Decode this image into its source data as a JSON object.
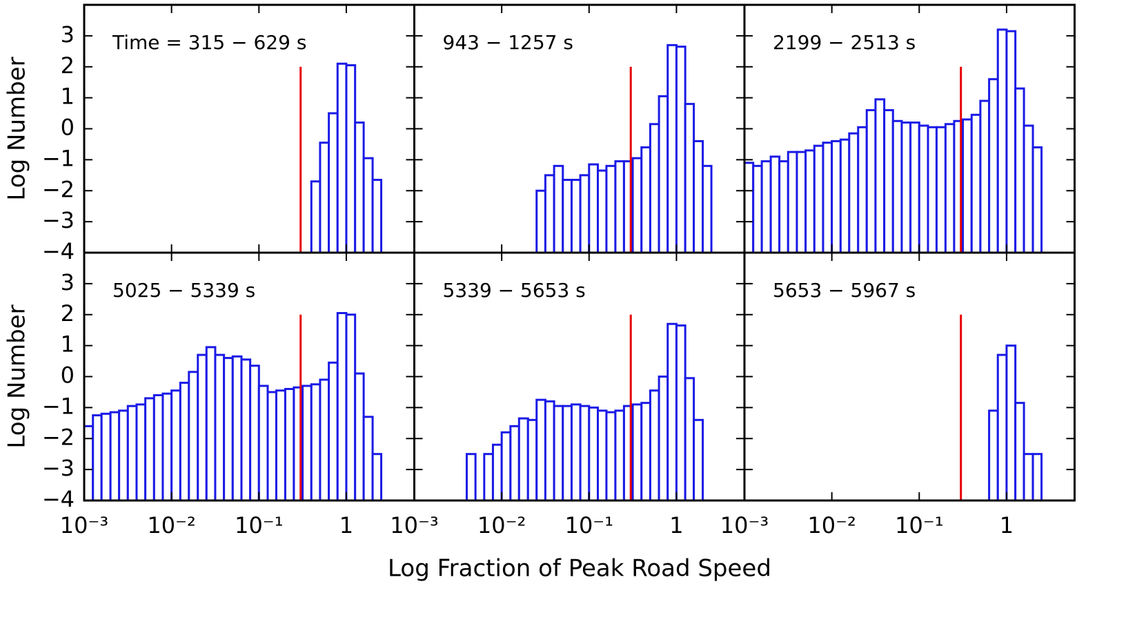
{
  "xlabel": "Log Fraction of Peak Road Speed",
  "chart_data": [
    {
      "type": "histogram",
      "title": "Time = 315 − 629 s",
      "ylabel": "Log Number",
      "log_x": true,
      "color": "#1a1ae6",
      "bins": [
        0.001,
        0.00126,
        0.00158,
        0.002,
        0.00251,
        0.00316,
        0.00398,
        0.00501,
        0.00631,
        0.00794,
        0.01,
        0.0126,
        0.0158,
        0.02,
        0.0251,
        0.0316,
        0.0398,
        0.0501,
        0.0631,
        0.0794,
        0.1,
        0.126,
        0.158,
        0.2,
        0.251,
        0.316,
        0.398,
        0.501,
        0.631,
        0.794,
        1,
        1.26,
        1.58,
        2,
        2.51,
        3.16,
        3.98,
        5.01
      ],
      "values": [
        null,
        null,
        null,
        null,
        null,
        null,
        null,
        null,
        null,
        null,
        null,
        null,
        null,
        null,
        null,
        null,
        null,
        null,
        null,
        null,
        null,
        null,
        null,
        null,
        null,
        null,
        -1.7,
        -0.45,
        0.5,
        2.1,
        2.05,
        0.2,
        -0.95,
        -1.65,
        null,
        null,
        null
      ],
      "vline": {
        "x": 0.3,
        "ymax": 2,
        "color": "#e60000"
      },
      "xlim": [
        0.001,
        6
      ],
      "ylim": [
        -4,
        4
      ],
      "xticks": [
        0.001,
        0.01,
        0.1,
        1
      ],
      "yticks": [
        {
          "value": -4,
          "label": "−4"
        },
        {
          "value": -3,
          "label": "−3"
        },
        {
          "value": -2,
          "label": "−2"
        },
        {
          "value": -1,
          "label": "−1"
        },
        0,
        1,
        2,
        3
      ]
    },
    {
      "type": "histogram",
      "title": "943 − 1257 s",
      "log_x": true,
      "color": "#1a1ae6",
      "bins": [
        0.001,
        0.00126,
        0.00158,
        0.002,
        0.00251,
        0.00316,
        0.00398,
        0.00501,
        0.00631,
        0.00794,
        0.01,
        0.0126,
        0.0158,
        0.02,
        0.0251,
        0.0316,
        0.0398,
        0.0501,
        0.0631,
        0.0794,
        0.1,
        0.126,
        0.158,
        0.2,
        0.251,
        0.316,
        0.398,
        0.501,
        0.631,
        0.794,
        1,
        1.26,
        1.58,
        2,
        2.51,
        3.16,
        3.98,
        5.01
      ],
      "values": [
        null,
        null,
        null,
        null,
        null,
        null,
        null,
        null,
        null,
        null,
        null,
        null,
        null,
        null,
        -2.0,
        -1.5,
        -1.2,
        -1.65,
        -1.65,
        -1.5,
        -1.15,
        -1.35,
        -1.2,
        -1.05,
        -1.05,
        -0.95,
        -0.6,
        0.15,
        1.05,
        2.7,
        2.65,
        0.8,
        -0.4,
        -1.2,
        null,
        null,
        null
      ],
      "vline": {
        "x": 0.3,
        "ymax": 2,
        "color": "#e60000"
      },
      "xlim": [
        0.001,
        6
      ],
      "ylim": [
        -4,
        4
      ],
      "xticks": [
        0.001,
        0.01,
        0.1,
        1
      ],
      "yticks": [
        -4,
        -3,
        -2,
        -1,
        0,
        1,
        2,
        3
      ]
    },
    {
      "type": "histogram",
      "title": "2199 − 2513 s",
      "log_x": true,
      "color": "#1a1ae6",
      "bins": [
        0.001,
        0.00126,
        0.00158,
        0.002,
        0.00251,
        0.00316,
        0.00398,
        0.00501,
        0.00631,
        0.00794,
        0.01,
        0.0126,
        0.0158,
        0.02,
        0.0251,
        0.0316,
        0.0398,
        0.0501,
        0.0631,
        0.0794,
        0.1,
        0.126,
        0.158,
        0.2,
        0.251,
        0.316,
        0.398,
        0.501,
        0.631,
        0.794,
        1,
        1.26,
        1.58,
        2,
        2.51,
        3.16,
        3.98,
        5.01
      ],
      "values": [
        -1.1,
        -1.2,
        -1.05,
        -0.9,
        -1.05,
        -0.75,
        -0.75,
        -0.7,
        -0.55,
        -0.45,
        -0.4,
        -0.35,
        -0.15,
        0.05,
        0.6,
        0.95,
        0.6,
        0.25,
        0.2,
        0.2,
        0.1,
        0.05,
        0.05,
        0.15,
        0.25,
        0.3,
        0.45,
        0.9,
        1.6,
        3.2,
        3.15,
        1.3,
        0.1,
        -0.6,
        null,
        null,
        null
      ],
      "vline": {
        "x": 0.3,
        "ymax": 2,
        "color": "#e60000"
      },
      "xlim": [
        0.001,
        6
      ],
      "ylim": [
        -4,
        4
      ],
      "xticks": [
        0.001,
        0.01,
        0.1,
        1
      ],
      "yticks": [
        -4,
        -3,
        -2,
        -1,
        0,
        1,
        2,
        3
      ]
    },
    {
      "type": "histogram",
      "title": "5025 − 5339 s",
      "ylabel": "Log Number",
      "log_x": true,
      "color": "#1a1ae6",
      "bins": [
        0.001,
        0.00126,
        0.00158,
        0.002,
        0.00251,
        0.00316,
        0.00398,
        0.00501,
        0.00631,
        0.00794,
        0.01,
        0.0126,
        0.0158,
        0.02,
        0.0251,
        0.0316,
        0.0398,
        0.0501,
        0.0631,
        0.0794,
        0.1,
        0.126,
        0.158,
        0.2,
        0.251,
        0.316,
        0.398,
        0.501,
        0.631,
        0.794,
        1,
        1.26,
        1.58,
        2,
        2.51,
        3.16,
        3.98,
        5.01
      ],
      "values": [
        -1.6,
        -1.25,
        -1.2,
        -1.15,
        -1.1,
        -0.95,
        -0.9,
        -0.7,
        -0.6,
        -0.55,
        -0.45,
        -0.2,
        0.15,
        0.7,
        0.95,
        0.7,
        0.6,
        0.65,
        0.55,
        0.35,
        -0.3,
        -0.5,
        -0.45,
        -0.4,
        -0.35,
        -0.3,
        -0.25,
        -0.1,
        0.45,
        2.05,
        2.0,
        0.1,
        -1.3,
        -2.5,
        null,
        null,
        null
      ],
      "vline": {
        "x": 0.3,
        "ymax": 2,
        "color": "#e60000"
      },
      "xlim": [
        0.001,
        6
      ],
      "ylim": [
        -4,
        4
      ],
      "xticks": [
        {
          "value": 0.001,
          "label": "10⁻³"
        },
        {
          "value": 0.01,
          "label": "10⁻²"
        },
        {
          "value": 0.1,
          "label": "10⁻¹"
        },
        1
      ],
      "yticks": [
        {
          "value": -4,
          "label": "−4"
        },
        {
          "value": -3,
          "label": "−3"
        },
        {
          "value": -2,
          "label": "−2"
        },
        {
          "value": -1,
          "label": "−1"
        },
        0,
        1,
        2,
        3
      ]
    },
    {
      "type": "histogram",
      "title": "5339 − 5653 s",
      "log_x": true,
      "color": "#1a1ae6",
      "bins": [
        0.001,
        0.00126,
        0.00158,
        0.002,
        0.00251,
        0.00316,
        0.00398,
        0.00501,
        0.00631,
        0.00794,
        0.01,
        0.0126,
        0.0158,
        0.02,
        0.0251,
        0.0316,
        0.0398,
        0.0501,
        0.0631,
        0.0794,
        0.1,
        0.126,
        0.158,
        0.2,
        0.251,
        0.316,
        0.398,
        0.501,
        0.631,
        0.794,
        1,
        1.26,
        1.58,
        2,
        2.51,
        3.16,
        3.98,
        5.01
      ],
      "values": [
        null,
        null,
        null,
        null,
        null,
        null,
        -2.5,
        null,
        -2.5,
        -2.2,
        -1.8,
        -1.6,
        -1.35,
        -1.4,
        -0.75,
        -0.8,
        -0.95,
        -0.95,
        -0.9,
        -0.95,
        -1.0,
        -1.1,
        -1.15,
        -1.1,
        -0.95,
        -0.9,
        -0.85,
        -0.45,
        0.0,
        1.7,
        1.65,
        -0.05,
        -1.4,
        null,
        null,
        null,
        null
      ],
      "vline": {
        "x": 0.3,
        "ymax": 2,
        "color": "#e60000"
      },
      "xlim": [
        0.001,
        6
      ],
      "ylim": [
        -4,
        4
      ],
      "xticks": [
        {
          "value": 0.001,
          "label": "10⁻³"
        },
        {
          "value": 0.01,
          "label": "10⁻²"
        },
        {
          "value": 0.1,
          "label": "10⁻¹"
        },
        1
      ],
      "yticks": [
        -4,
        -3,
        -2,
        -1,
        0,
        1,
        2,
        3
      ]
    },
    {
      "type": "histogram",
      "title": "5653 − 5967 s",
      "log_x": true,
      "color": "#1a1ae6",
      "bins": [
        0.001,
        0.00126,
        0.00158,
        0.002,
        0.00251,
        0.00316,
        0.00398,
        0.00501,
        0.00631,
        0.00794,
        0.01,
        0.0126,
        0.0158,
        0.02,
        0.0251,
        0.0316,
        0.0398,
        0.0501,
        0.0631,
        0.0794,
        0.1,
        0.126,
        0.158,
        0.2,
        0.251,
        0.316,
        0.398,
        0.501,
        0.631,
        0.794,
        1,
        1.26,
        1.58,
        2,
        2.51,
        3.16,
        3.98,
        5.01
      ],
      "values": [
        null,
        null,
        null,
        null,
        null,
        null,
        null,
        null,
        null,
        null,
        null,
        null,
        null,
        null,
        null,
        null,
        null,
        null,
        null,
        null,
        null,
        null,
        null,
        null,
        null,
        null,
        null,
        null,
        -1.1,
        0.7,
        1.0,
        -0.85,
        -2.5,
        -2.5,
        null,
        null,
        null
      ],
      "vline": {
        "x": 0.3,
        "ymax": 2,
        "color": "#e60000"
      },
      "xlim": [
        0.001,
        6
      ],
      "ylim": [
        -4,
        4
      ],
      "xticks": [
        {
          "value": 0.001,
          "label": "10⁻³"
        },
        {
          "value": 0.01,
          "label": "10⁻²"
        },
        {
          "value": 0.1,
          "label": "10⁻¹"
        },
        1
      ],
      "yticks": [
        -4,
        -3,
        -2,
        -1,
        0,
        1,
        2,
        3
      ]
    }
  ]
}
